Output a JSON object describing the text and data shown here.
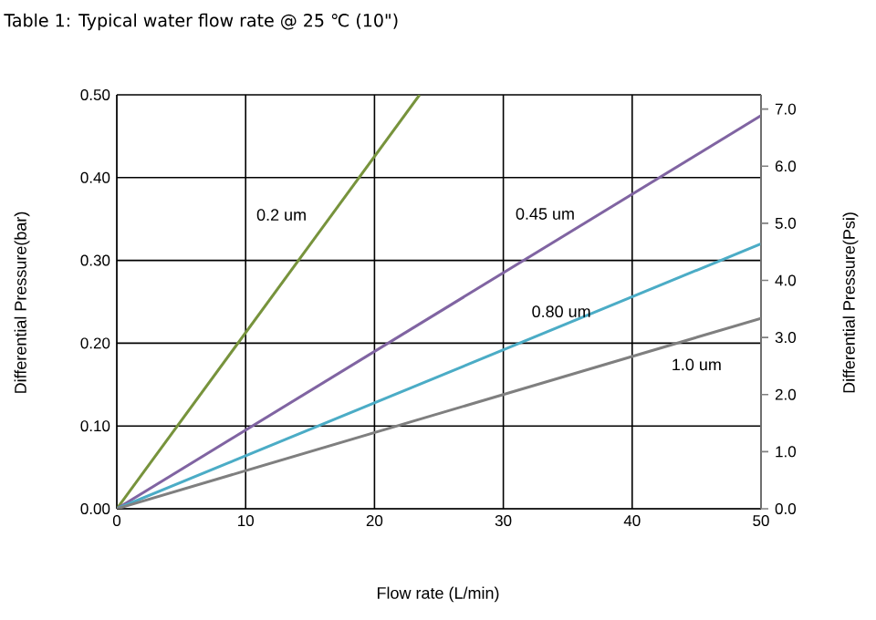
{
  "chart_data": {
    "type": "line",
    "title": "Table 1:  Typical water flow rate @ 25 ℃ (10\")",
    "xlabel": "Flow rate (L/min)",
    "ylabel": "Differential Pressure(bar)",
    "y2label": "Differential Pressure(Psi)",
    "series": [
      {
        "name": "0.2 um",
        "x": [
          0,
          23.5
        ],
        "values": [
          0,
          0.5
        ],
        "color": "#77933c"
      },
      {
        "name": "0.45 um",
        "x": [
          0,
          50
        ],
        "values": [
          0,
          0.475
        ],
        "color": "#8064a2"
      },
      {
        "name": "0.80 um",
        "x": [
          0,
          50
        ],
        "values": [
          0,
          0.32
        ],
        "color": "#4bacc6"
      },
      {
        "name": "1.0 um",
        "x": [
          0,
          50
        ],
        "values": [
          0,
          0.23
        ],
        "color": "#7f7f7f"
      }
    ],
    "xlim": [
      0,
      50
    ],
    "xticks": [
      0,
      10,
      20,
      30,
      40,
      50
    ],
    "ylim": [
      0,
      0.5
    ],
    "yticks": [
      {
        "value": 0,
        "label": "0.00"
      },
      {
        "value": 0.1,
        "label": "0.10"
      },
      {
        "value": 0.2,
        "label": "0.20"
      },
      {
        "value": 0.3,
        "label": "0.30"
      },
      {
        "value": 0.4,
        "label": "0.40"
      },
      {
        "value": 0.5,
        "label": "0.50"
      }
    ],
    "y2lim": [
      0,
      7.25
    ],
    "y2ticks": [
      {
        "value": 0,
        "label": "0.0"
      },
      {
        "value": 1,
        "label": "1.0"
      },
      {
        "value": 2,
        "label": "2.0"
      },
      {
        "value": 3,
        "label": "3.0"
      },
      {
        "value": 4,
        "label": "4.0"
      },
      {
        "value": 5,
        "label": "5.0"
      },
      {
        "value": 6,
        "label": "6.0"
      },
      {
        "value": 7,
        "label": "7.0"
      }
    ],
    "grid": true,
    "line_style": "solid"
  }
}
